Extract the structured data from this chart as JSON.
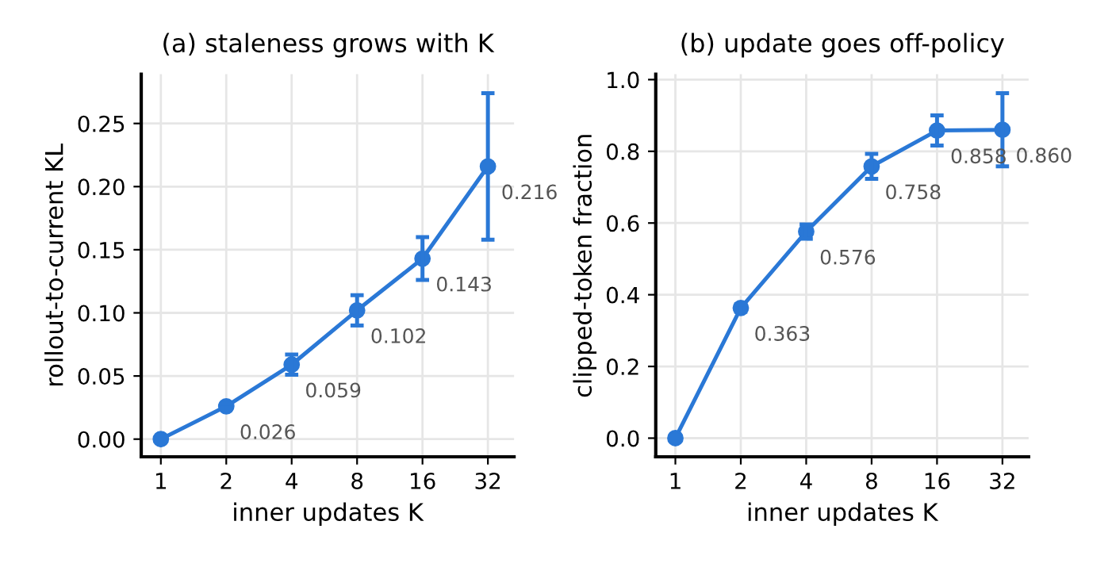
{
  "chart_data": [
    {
      "type": "line",
      "title": "(a) staleness grows with K",
      "xlabel": "inner updates K",
      "ylabel": "rollout-to-current KL",
      "categories": [
        "1",
        "2",
        "4",
        "8",
        "16",
        "32"
      ],
      "series": [
        {
          "color": "#2a78d6",
          "values": [
            0.0,
            0.026,
            0.059,
            0.102,
            0.143,
            0.216
          ],
          "errors": [
            null,
            0.002,
            0.008,
            0.012,
            0.017,
            0.058
          ],
          "value_labels": [
            null,
            "0.026",
            "0.059",
            "0.102",
            "0.143",
            "0.216"
          ]
        }
      ],
      "ylim": [
        -0.014,
        0.289
      ],
      "yticks": [
        {
          "value": 0,
          "label": "0.00"
        },
        0.05,
        {
          "value": 0.1,
          "label": "0.10"
        },
        0.15,
        {
          "value": 0.2,
          "label": "0.20"
        },
        0.25
      ],
      "grid": true,
      "marker": "circle",
      "line_style": "solid"
    },
    {
      "type": "line",
      "title": "(b) update goes off-policy",
      "xlabel": "inner updates K",
      "ylabel": "clipped-token fraction",
      "categories": [
        "1",
        "2",
        "4",
        "8",
        "16",
        "32"
      ],
      "series": [
        {
          "color": "#2a78d6",
          "values": [
            0.0,
            0.363,
            0.576,
            0.758,
            0.858,
            0.86
          ],
          "errors": [
            null,
            0.01,
            0.02,
            0.035,
            0.042,
            0.102
          ],
          "value_labels": [
            null,
            "0.363",
            "0.576",
            "0.758",
            "0.858",
            "0.860"
          ]
        }
      ],
      "ylim": [
        -0.052,
        1.015
      ],
      "yticks": [
        {
          "value": 0,
          "label": "0.0"
        },
        0.2,
        0.4,
        0.6,
        0.8,
        {
          "value": 1,
          "label": "1.0"
        }
      ],
      "grid": true,
      "marker": "circle",
      "line_style": "solid"
    }
  ]
}
